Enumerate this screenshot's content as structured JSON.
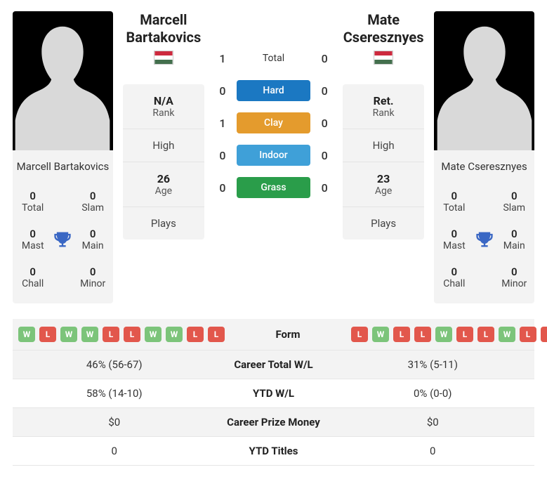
{
  "players": {
    "left": {
      "name": "Marcell Bartakovics",
      "country": "HUN",
      "flag_stripes": [
        "#cd2a3e",
        "#ffffff",
        "#436f4d"
      ],
      "rank_value": "N/A",
      "rank_label": "Rank",
      "high_label": "High",
      "age_value": "26",
      "age_label": "Age",
      "plays_label": "Plays",
      "stats": {
        "total": {
          "val": "0",
          "lbl": "Total"
        },
        "slam": {
          "val": "0",
          "lbl": "Slam"
        },
        "mast": {
          "val": "0",
          "lbl": "Mast"
        },
        "main": {
          "val": "0",
          "lbl": "Main"
        },
        "chall": {
          "val": "0",
          "lbl": "Chall"
        },
        "minor": {
          "val": "0",
          "lbl": "Minor"
        }
      },
      "form": [
        "W",
        "L",
        "W",
        "W",
        "L",
        "L",
        "W",
        "W",
        "L",
        "L"
      ]
    },
    "right": {
      "name": "Mate Cseresznyes",
      "country": "HUN",
      "flag_stripes": [
        "#cd2a3e",
        "#ffffff",
        "#436f4d"
      ],
      "rank_value": "Ret.",
      "rank_label": "Rank",
      "high_label": "High",
      "age_value": "23",
      "age_label": "Age",
      "plays_label": "Plays",
      "stats": {
        "total": {
          "val": "0",
          "lbl": "Total"
        },
        "slam": {
          "val": "0",
          "lbl": "Slam"
        },
        "mast": {
          "val": "0",
          "lbl": "Mast"
        },
        "main": {
          "val": "0",
          "lbl": "Main"
        },
        "chall": {
          "val": "0",
          "lbl": "Chall"
        },
        "minor": {
          "val": "0",
          "lbl": "Minor"
        }
      },
      "form": [
        "L",
        "W",
        "L",
        "L",
        "W",
        "L",
        "L",
        "W",
        "L",
        "L"
      ]
    }
  },
  "h2h": {
    "rows": [
      {
        "left": "1",
        "label": "Total",
        "right": "0",
        "style": "total"
      },
      {
        "left": "0",
        "label": "Hard",
        "right": "0",
        "style": "hard"
      },
      {
        "left": "1",
        "label": "Clay",
        "right": "0",
        "style": "clay"
      },
      {
        "left": "0",
        "label": "Indoor",
        "right": "0",
        "style": "indoor"
      },
      {
        "left": "0",
        "label": "Grass",
        "right": "0",
        "style": "grass"
      }
    ],
    "surface_colors": {
      "hard": "#1b78c2",
      "clay": "#e49b2d",
      "indoor": "#3fa0d8",
      "grass": "#2a9d4a"
    }
  },
  "compare": {
    "form_label": "Form",
    "rows": [
      {
        "left": "46% (56-67)",
        "label": "Career Total W/L",
        "right": "31% (5-11)"
      },
      {
        "left": "58% (14-10)",
        "label": "YTD W/L",
        "right": "0% (0-0)"
      },
      {
        "left": "$0",
        "label": "Career Prize Money",
        "right": "$0"
      },
      {
        "left": "0",
        "label": "YTD Titles",
        "right": "0"
      }
    ]
  },
  "form_colors": {
    "W": "#7cc47a",
    "L": "#e2574c"
  },
  "trophy_color": "#3a67c4",
  "silhouette_color": "#d9d9d9"
}
